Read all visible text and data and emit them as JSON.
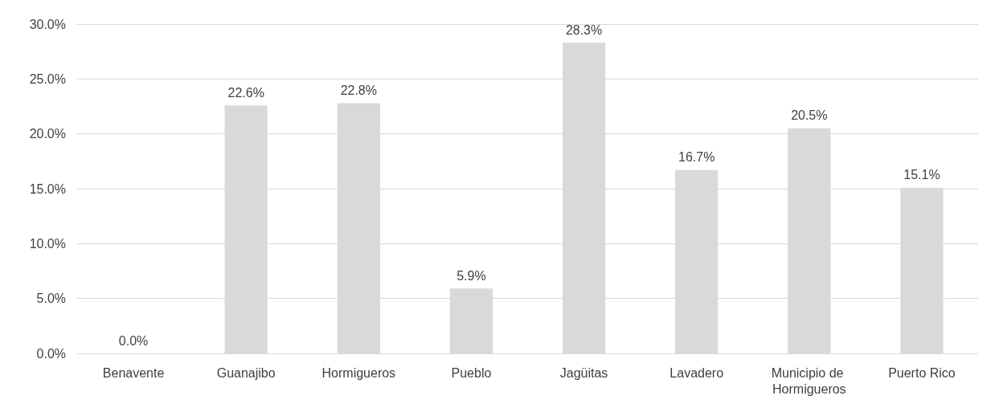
{
  "chart_data": {
    "type": "bar",
    "categories": [
      "Benavente",
      "Guanajibo",
      "Hormigueros",
      "Pueblo",
      "Jagüitas",
      "Lavadero",
      "Municipio de Hormigueros",
      "Puerto Rico"
    ],
    "values": [
      0.0,
      22.6,
      22.8,
      5.9,
      28.3,
      16.7,
      20.5,
      15.1
    ],
    "value_labels": [
      "0.0%",
      "22.6%",
      "22.8%",
      "5.9%",
      "28.3%",
      "16.7%",
      "20.5%",
      "15.1%"
    ],
    "color": "#d9d9d9",
    "ylim": [
      0,
      30
    ],
    "yticks": [
      {
        "value": 0,
        "label": "0.0%"
      },
      {
        "value": 5,
        "label": "5.0%"
      },
      {
        "value": 10,
        "label": "10.0%"
      },
      {
        "value": 15,
        "label": "15.0%"
      },
      {
        "value": 20,
        "label": "20.0%"
      },
      {
        "value": 25,
        "label": "25.0%"
      },
      {
        "value": 30,
        "label": "30.0%"
      }
    ],
    "grid": "y"
  }
}
